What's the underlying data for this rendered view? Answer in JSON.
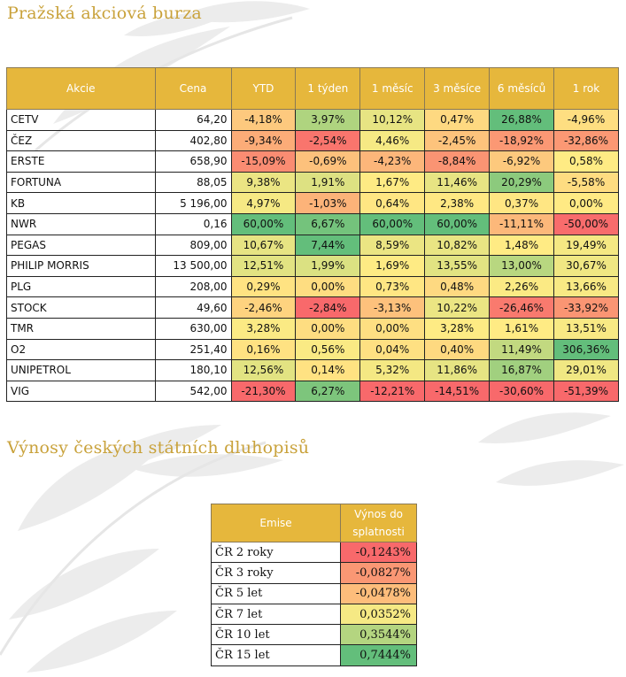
{
  "colors": {
    "accent": "#c9a23b",
    "header_bg": "#e6b73c",
    "scale_negative": "#f8696b",
    "scale_mid": "#ffeb84",
    "scale_positive": "#63be7b"
  },
  "section1": {
    "title": "Pražská akciová burza"
  },
  "stocks": {
    "headers": [
      "Akcie",
      "Cena",
      "YTD",
      "1 týden",
      "1 měsíc",
      "3 měsíce",
      "6 měsíců",
      "1 rok"
    ],
    "rows": [
      {
        "name": "CETV",
        "price": "64,20",
        "ytd": "-4,18%",
        "w1": "3,97%",
        "m1": "10,12%",
        "m3": "0,47%",
        "m6": "26,88%",
        "y1": "-4,96%"
      },
      {
        "name": "ČEZ",
        "price": "402,80",
        "ytd": "-9,34%",
        "w1": "-2,54%",
        "m1": "4,46%",
        "m3": "-2,45%",
        "m6": "-18,92%",
        "y1": "-32,86%"
      },
      {
        "name": "ERSTE",
        "price": "658,90",
        "ytd": "-15,09%",
        "w1": "-0,69%",
        "m1": "-4,23%",
        "m3": "-8,84%",
        "m6": "-6,92%",
        "y1": "0,58%"
      },
      {
        "name": "FORTUNA",
        "price": "88,05",
        "ytd": "9,38%",
        "w1": "1,91%",
        "m1": "1,67%",
        "m3": "11,46%",
        "m6": "20,29%",
        "y1": "-5,58%"
      },
      {
        "name": "KB",
        "price": "5 196,00",
        "ytd": "4,97%",
        "w1": "-1,03%",
        "m1": "0,64%",
        "m3": "2,38%",
        "m6": "0,37%",
        "y1": "0,00%"
      },
      {
        "name": "NWR",
        "price": "0,16",
        "ytd": "60,00%",
        "w1": "6,67%",
        "m1": "60,00%",
        "m3": "60,00%",
        "m6": "-11,11%",
        "y1": "-50,00%"
      },
      {
        "name": "PEGAS",
        "price": "809,00",
        "ytd": "10,67%",
        "w1": "7,44%",
        "m1": "8,59%",
        "m3": "10,82%",
        "m6": "1,48%",
        "y1": "19,49%"
      },
      {
        "name": "PHILIP MORRIS",
        "price": "13 500,00",
        "ytd": "12,51%",
        "w1": "1,99%",
        "m1": "1,69%",
        "m3": "13,55%",
        "m6": "13,00%",
        "y1": "30,67%"
      },
      {
        "name": "PLG",
        "price": "208,00",
        "ytd": "0,29%",
        "w1": "0,00%",
        "m1": "0,73%",
        "m3": "0,48%",
        "m6": "2,26%",
        "y1": "13,66%"
      },
      {
        "name": "STOCK",
        "price": "49,60",
        "ytd": "-2,46%",
        "w1": "-2,84%",
        "m1": "-3,13%",
        "m3": "10,22%",
        "m6": "-26,46%",
        "y1": "-33,92%"
      },
      {
        "name": "TMR",
        "price": "630,00",
        "ytd": "3,28%",
        "w1": "0,00%",
        "m1": "0,00%",
        "m3": "3,28%",
        "m6": "1,61%",
        "y1": "13,51%"
      },
      {
        "name": "O2",
        "price": "251,40",
        "ytd": "0,16%",
        "w1": "0,56%",
        "m1": "0,04%",
        "m3": "0,40%",
        "m6": "11,49%",
        "y1": "306,36%"
      },
      {
        "name": "UNIPETROL",
        "price": "180,10",
        "ytd": "12,56%",
        "w1": "0,14%",
        "m1": "5,32%",
        "m3": "11,86%",
        "m6": "16,87%",
        "y1": "29,01%"
      },
      {
        "name": "VIG",
        "price": "542,00",
        "ytd": "-21,30%",
        "w1": "6,27%",
        "m1": "-12,21%",
        "m3": "-14,51%",
        "m6": "-30,60%",
        "y1": "-51,39%"
      }
    ]
  },
  "section2": {
    "title": "Výnosy českých státních dluhopisů"
  },
  "bonds": {
    "headers": [
      "Emise",
      "Výnos do splatnosti"
    ],
    "rows": [
      {
        "name": "ČR 2 roky",
        "value": "-0,1243%"
      },
      {
        "name": "ČR 3 roky",
        "value": "-0,0827%"
      },
      {
        "name": "ČR 5 let",
        "value": "-0,0478%"
      },
      {
        "name": "ČR 7 let",
        "value": "0,0352%"
      },
      {
        "name": "ČR 10 let",
        "value": "0,3544%"
      },
      {
        "name": "ČR 15 let",
        "value": "0,7444%"
      }
    ]
  }
}
